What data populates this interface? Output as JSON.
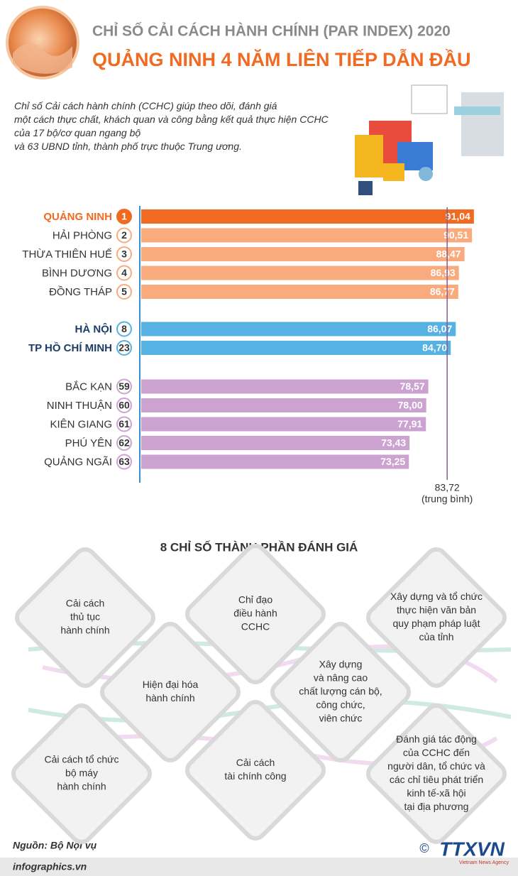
{
  "header": {
    "title": "CHỈ SỐ CẢI CÁCH HÀNH CHÍNH (PAR INDEX) 2020",
    "subtitle": "QUẢNG NINH 4 NĂM LIÊN TIẾP DẪN ĐẦU",
    "intro": [
      "Chỉ số Cải cách hành chính (CCHC) giúp theo dõi, đánh giá",
      "một cách thực chất, khách quan và công bằng kết quả thực hiện CCHC",
      "của 17 bộ/cơ quan ngang bộ",
      "và 63 UBND tỉnh, thành phố trực thuộc Trung ương."
    ]
  },
  "chart_data": {
    "type": "bar",
    "orientation": "horizontal",
    "categories": [
      "QUẢNG NINH",
      "HẢI PHÒNG",
      "THỪA THIÊN HUẾ",
      "BÌNH DƯƠNG",
      "ĐỒNG THÁP",
      "HÀ NỘI",
      "TP HỒ CHÍ MINH",
      "BẮC KẠN",
      "NINH THUẬN",
      "KIÊN GIANG",
      "PHÚ YÊN",
      "QUẢNG NGÃI"
    ],
    "ranks": [
      1,
      2,
      3,
      4,
      5,
      8,
      23,
      59,
      60,
      61,
      62,
      63
    ],
    "values": [
      91.04,
      90.51,
      88.47,
      86.93,
      86.77,
      86.07,
      84.7,
      78.57,
      78.0,
      77.91,
      73.43,
      73.25
    ],
    "value_labels": [
      "91,04",
      "90,51",
      "88,47",
      "86,93",
      "86,77",
      "86,07",
      "84,70",
      "78,57",
      "78,00",
      "77,91",
      "73,43",
      "73,25"
    ],
    "colors": [
      "#f06a22",
      "#f9ab7e",
      "#f9ab7e",
      "#f9ab7e",
      "#f9ab7e",
      "#55b2e3",
      "#55b2e3",
      "#cca3d0",
      "#cca3d0",
      "#cca3d0",
      "#cca3d0",
      "#cca3d0"
    ],
    "xlim": [
      0,
      100
    ],
    "average": {
      "value": 83.72,
      "label": "83,72"
    },
    "average_note": "(trung bình)"
  },
  "components": {
    "title": "8 CHỈ SỐ THÀNH PHẦN ĐÁNH GIÁ",
    "items": [
      [
        "Cải cách",
        "thủ tục",
        "hành chính"
      ],
      [
        "Chỉ đạo",
        "điều hành",
        "CCHC"
      ],
      [
        "Xây dựng và tổ chức",
        "thực hiện văn bản",
        "quy phạm pháp luật",
        "của tỉnh"
      ],
      [
        "Hiện đại hóa",
        "hành chính"
      ],
      [
        "Xây dựng",
        "và nâng cao",
        "chất lượng cán bộ,",
        "công chức,",
        "viên chức"
      ],
      [
        "Cải cách tổ chức",
        "bộ máy",
        "hành chính"
      ],
      [
        "Cải cách",
        "tài chính công"
      ],
      [
        "Đánh giá tác động",
        "của CCHC đến",
        "người dân, tổ chức và",
        "các chỉ tiêu phát triển",
        "kinh tế-xã hội",
        "tại địa phương"
      ]
    ]
  },
  "footer": {
    "source": "Nguồn: Bộ Nội vụ",
    "site": "infographics.vn",
    "copyright": "©",
    "logo": "TTXVN",
    "agency": "Vietnam News Agency"
  }
}
